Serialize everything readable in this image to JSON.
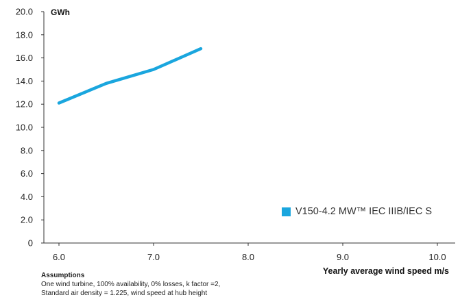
{
  "chart_data": {
    "type": "line",
    "unit_label": "GWh",
    "xlabel": "Yearly average wind speed m/s",
    "ylabel": "GWh",
    "xlim": [
      6.0,
      10.0
    ],
    "ylim": [
      0,
      20.0
    ],
    "x_ticks": [
      "6.0",
      "7.0",
      "8.0",
      "9.0",
      "10.0"
    ],
    "y_ticks": [
      "20.0",
      "18.0",
      "16.0",
      "14.0",
      "12.0",
      "10.0",
      "8.0",
      "6.0",
      "4.0",
      "2.0",
      "0"
    ],
    "grid": false,
    "legend_position": "right",
    "series": [
      {
        "name": "V150-4.2 MW™ IEC IIIB/IEC S",
        "color": "#1aa6de",
        "x": [
          6.0,
          6.5,
          7.0,
          7.5
        ],
        "y": [
          12.1,
          13.8,
          15.0,
          16.8
        ]
      }
    ]
  },
  "footnote": {
    "title": "Assumptions",
    "lines": [
      "One wind turbine, 100% availability, 0% losses, k factor =2,",
      "Standard air density = 1.225, wind speed at hub height"
    ]
  }
}
